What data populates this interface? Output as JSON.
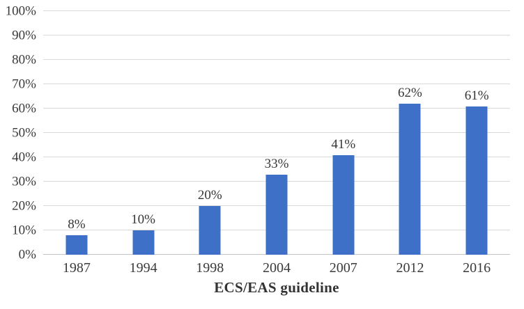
{
  "chart_data": {
    "type": "bar",
    "categories": [
      "1987",
      "1994",
      "1998",
      "2004",
      "2007",
      "2012",
      "2016"
    ],
    "values": [
      8,
      10,
      20,
      33,
      41,
      62,
      61
    ],
    "value_labels": [
      "8%",
      "10%",
      "20%",
      "33%",
      "41%",
      "62%",
      "61%"
    ],
    "title": "",
    "xlabel": "ECS/EAS guideline",
    "ylabel": "",
    "ylim": [
      0,
      100
    ],
    "ytick_step": 10,
    "ytick_labels": [
      "0%",
      "10%",
      "20%",
      "30%",
      "40%",
      "50%",
      "60%",
      "70%",
      "80%",
      "90%",
      "100%"
    ],
    "grid": true,
    "legend": "none",
    "bar_color": "#3e70c7",
    "gridline_color": "#d9d9d9",
    "baseline_color": "#c3c3c3",
    "text_color": "#3a3a3a"
  }
}
